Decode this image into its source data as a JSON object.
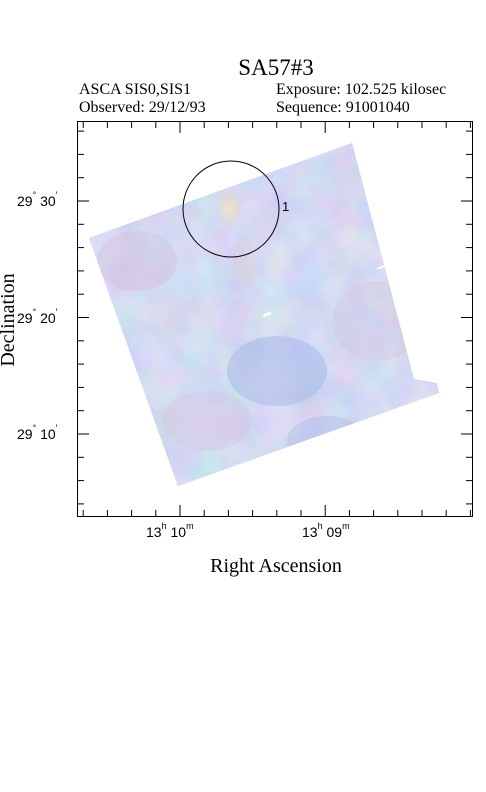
{
  "title": "SA57#3",
  "header": {
    "instrument": "ASCA SIS0,SIS1",
    "exposure": "Exposure: 102.525 kilosec",
    "observed": "Observed: 29/12/93",
    "sequence": "Sequence: 91001040"
  },
  "axes": {
    "xlabel": "Right Ascension",
    "ylabel": "Declination",
    "ra_ticks": [
      {
        "h": "13",
        "h_unit": "h",
        "m": "10",
        "m_unit": "m"
      },
      {
        "h": "13",
        "h_unit": "h",
        "m": "09",
        "m_unit": "m"
      }
    ],
    "dec_ticks": [
      {
        "deg": "29",
        "deg_unit": "°",
        "min": "30",
        "min_unit": "′"
      },
      {
        "deg": "29",
        "deg_unit": "°",
        "min": "20",
        "min_unit": "′"
      },
      {
        "deg": "29",
        "deg_unit": "°",
        "min": "10",
        "min_unit": "′"
      }
    ]
  },
  "source_marker": {
    "label": "1"
  },
  "colors": {
    "image_base": "#b6c2ea",
    "image_blue": "#9fb4e6",
    "image_pink": "#d4c2dc",
    "image_cream": "#ebdfc4"
  }
}
